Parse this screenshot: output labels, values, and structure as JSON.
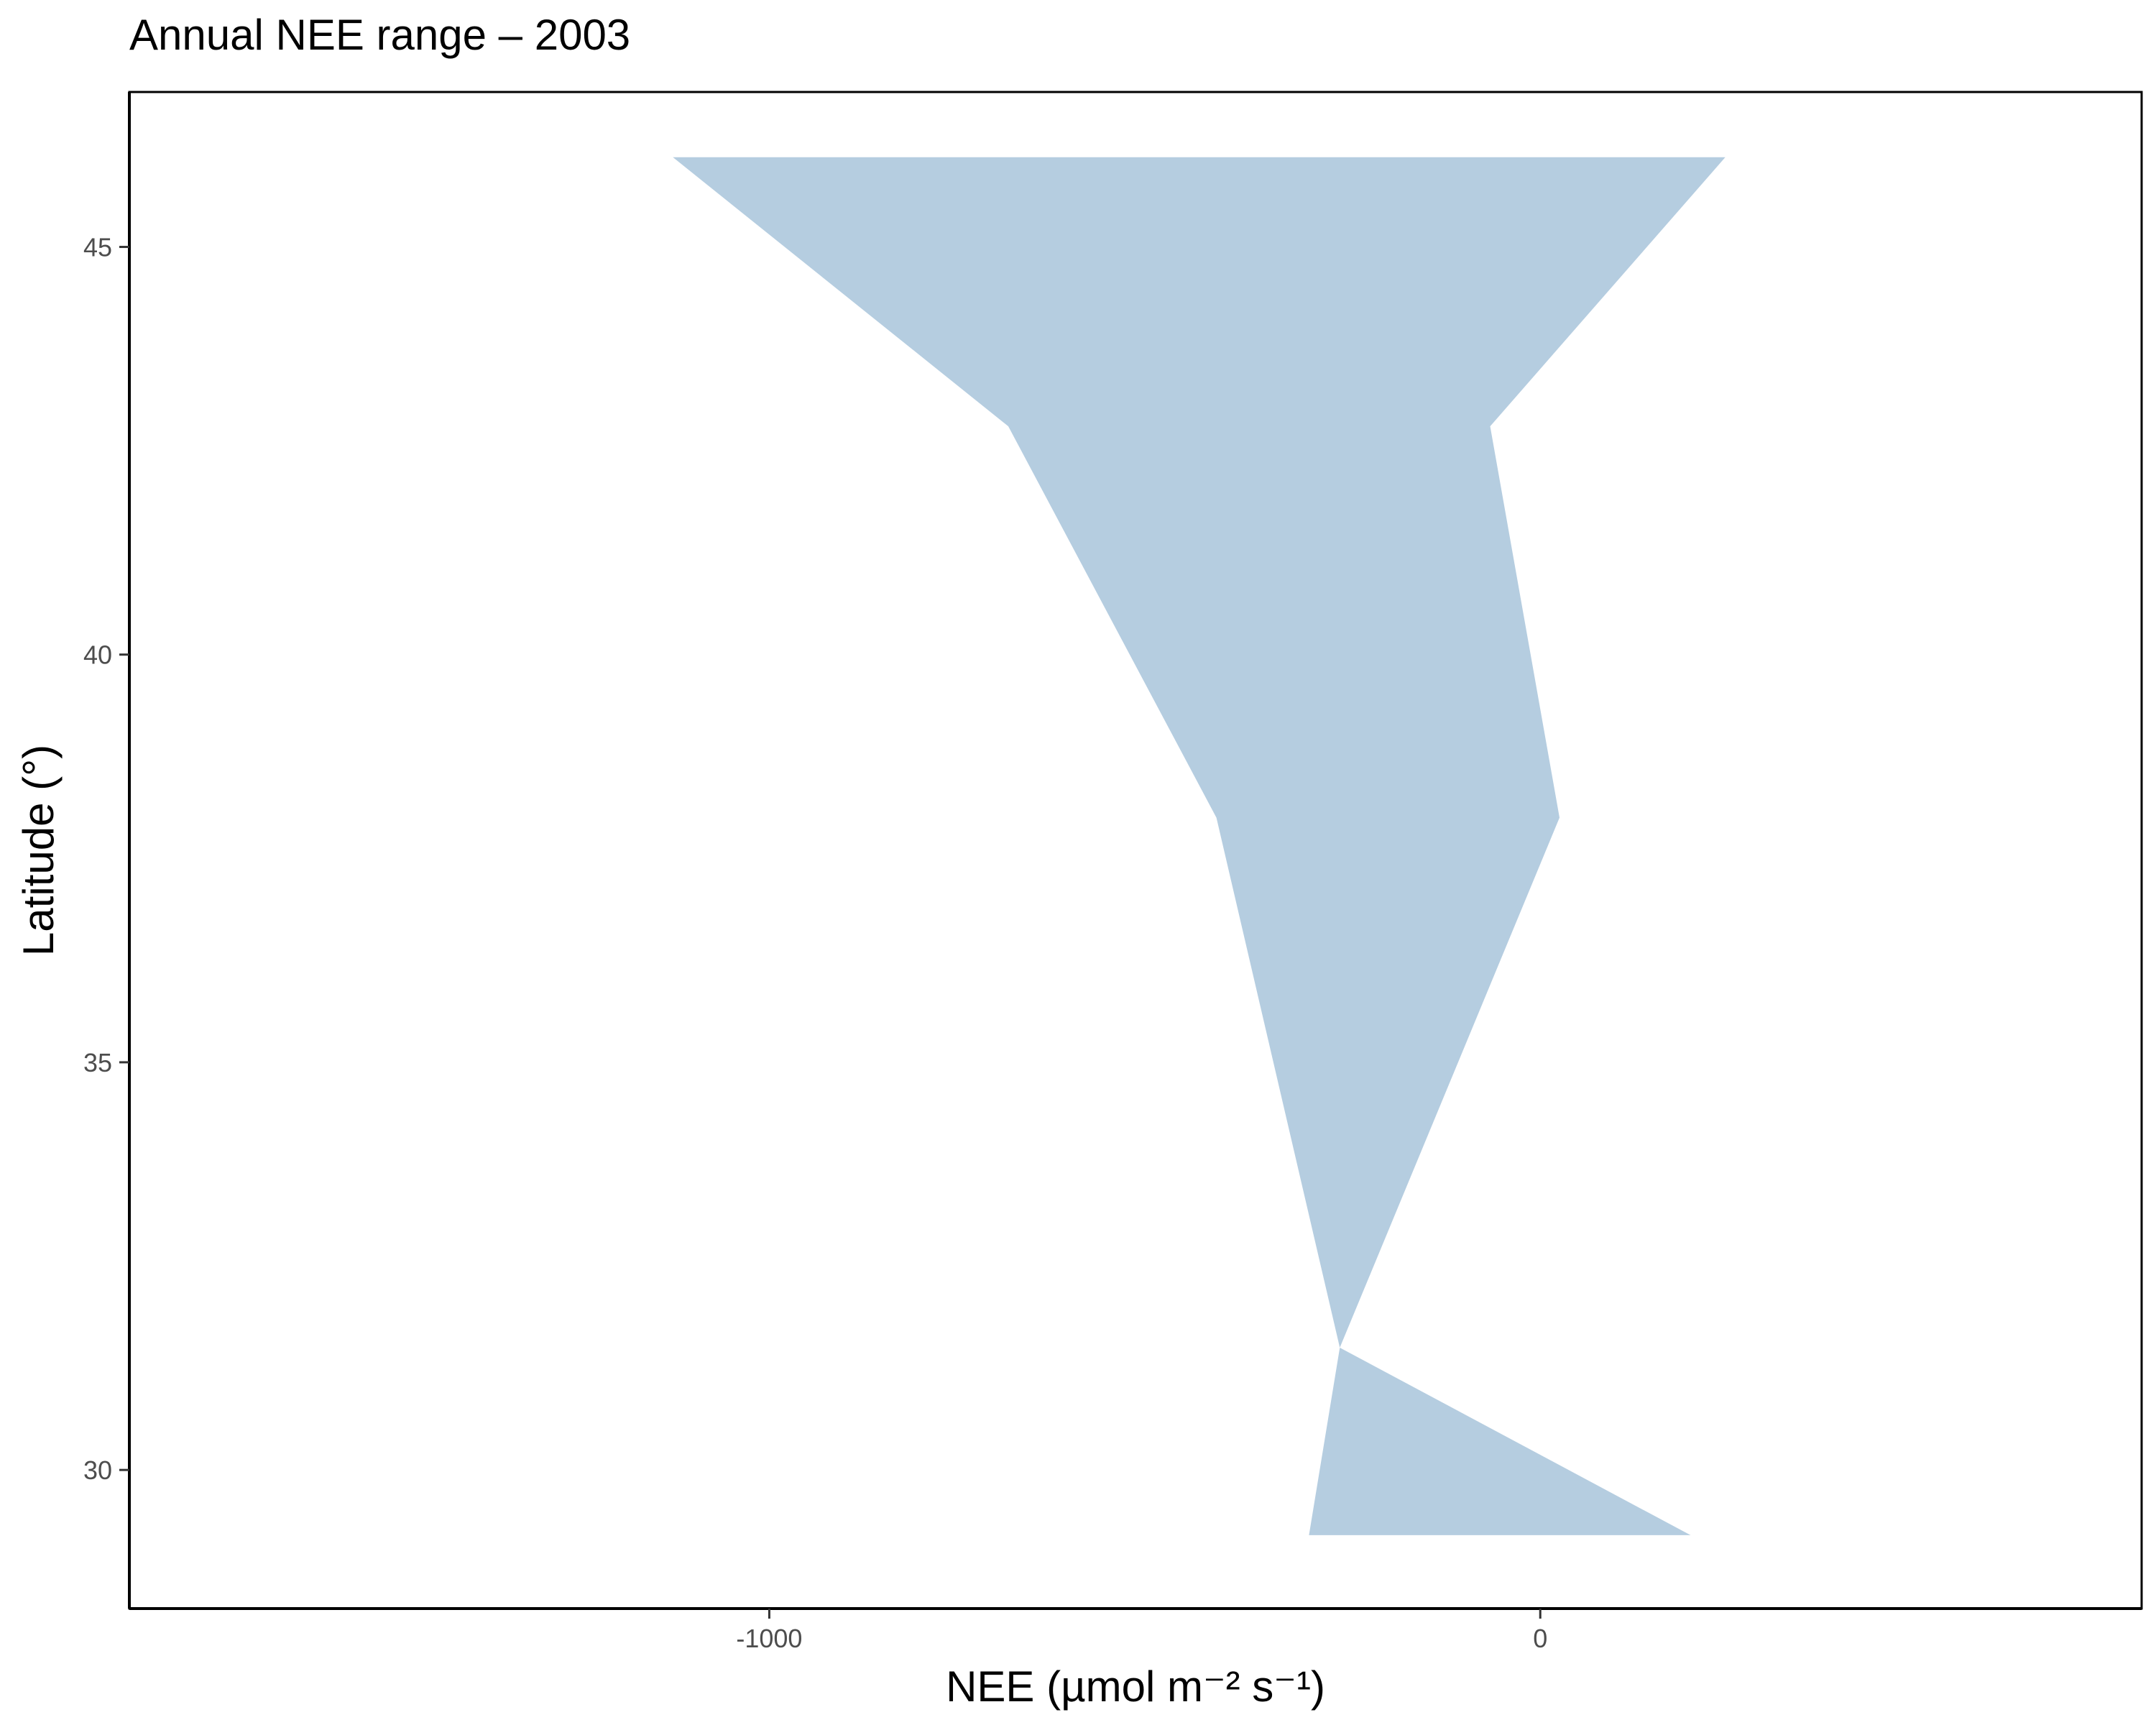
{
  "chart_data": {
    "type": "area",
    "orientation": "horizontal-range",
    "title": "Annual NEE range – 2003",
    "xlabel": "NEE (µmol m⁻² s⁻¹)",
    "ylabel": "Latitude (°)",
    "xlim": [
      -1830,
      780
    ],
    "ylim": [
      28.3,
      46.9
    ],
    "x_ticks": [
      {
        "value": -1000,
        "label": "-1000"
      },
      {
        "value": 0,
        "label": "0"
      }
    ],
    "y_ticks": [
      {
        "value": 30,
        "label": "30"
      },
      {
        "value": 35,
        "label": "35"
      },
      {
        "value": 40,
        "label": "40"
      },
      {
        "value": 45,
        "label": "45"
      }
    ],
    "grid": false,
    "legend": "none",
    "fill_color": "#b5cde0",
    "series": [
      {
        "latitude": [
          29.2,
          31.5,
          38.0,
          42.8,
          46.1
        ],
        "nee_min": [
          -300,
          -260,
          -420,
          -690,
          -1125
        ],
        "nee_max": [
          195,
          -260,
          25,
          -65,
          240
        ]
      }
    ]
  }
}
